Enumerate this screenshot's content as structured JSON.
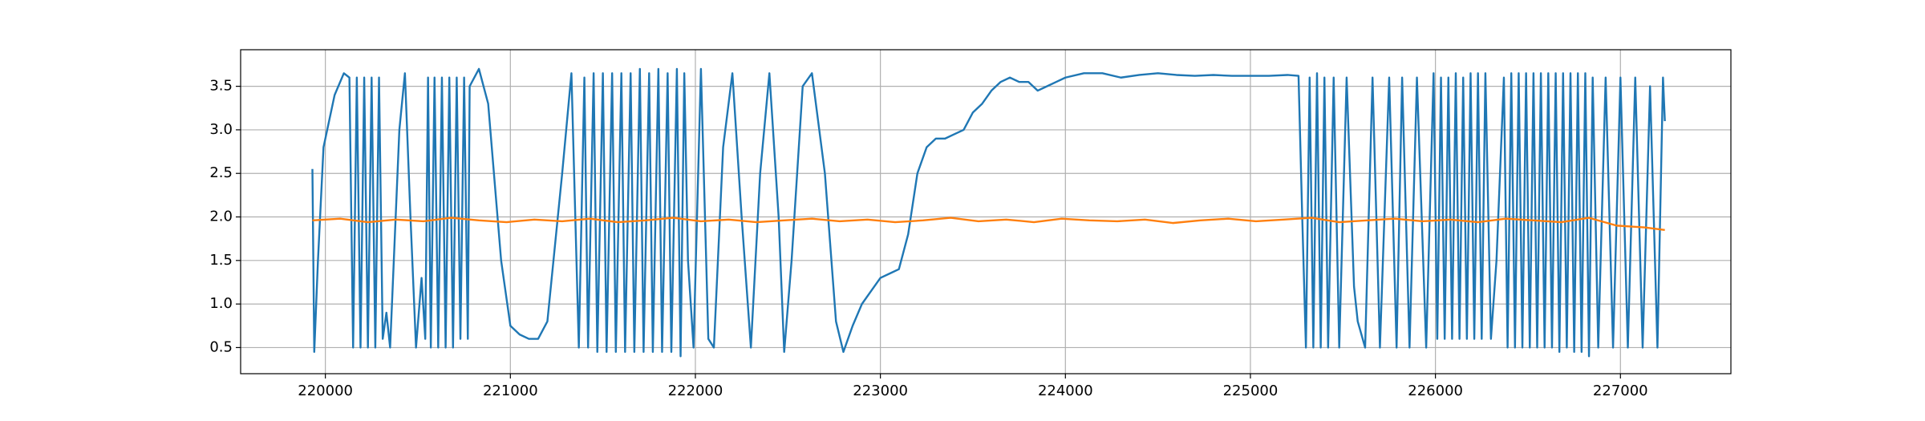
{
  "chart_data": {
    "type": "line",
    "xlim": [
      219542,
      227597
    ],
    "ylim": [
      0.2,
      3.92
    ],
    "xticks": [
      220000,
      221000,
      222000,
      223000,
      224000,
      225000,
      226000,
      227000
    ],
    "yticks": [
      0.5,
      {
        "value": 1,
        "label": "1.0"
      },
      1.5,
      {
        "value": 2,
        "label": "2.0"
      },
      2.5,
      {
        "value": 3,
        "label": "3.0"
      },
      3.5
    ],
    "grid": true,
    "series": [
      {
        "color": "#1f77b4",
        "x": [
          219930,
          219940,
          219960,
          219990,
          220050,
          220100,
          220130,
          220150,
          220170,
          220190,
          220210,
          220230,
          220250,
          220270,
          220290,
          220310,
          220330,
          220350,
          220400,
          220430,
          220460,
          220490,
          220520,
          220540,
          220555,
          220570,
          220590,
          220610,
          220630,
          220650,
          220670,
          220690,
          220710,
          220730,
          220750,
          220770,
          220780,
          220830,
          220880,
          220950,
          221000,
          221050,
          221100,
          221150,
          221200,
          221280,
          221330,
          221370,
          221400,
          221420,
          221450,
          221470,
          221500,
          221520,
          221550,
          221570,
          221600,
          221620,
          221650,
          221670,
          221700,
          221720,
          221750,
          221770,
          221800,
          221820,
          221850,
          221870,
          221900,
          221920,
          221940,
          221960,
          221990,
          222030,
          222070,
          222100,
          222150,
          222200,
          222250,
          222300,
          222350,
          222400,
          222450,
          222480,
          222520,
          222580,
          222630,
          222700,
          222760,
          222800,
          222850,
          222900,
          222950,
          223000,
          223050,
          223100,
          223150,
          223200,
          223250,
          223300,
          223350,
          223400,
          223450,
          223500,
          223550,
          223600,
          223650,
          223700,
          223750,
          223800,
          223850,
          223900,
          223950,
          224000,
          224100,
          224200,
          224300,
          224400,
          224500,
          224600,
          224700,
          224800,
          224900,
          225000,
          225100,
          225200,
          225260,
          225280,
          225300,
          225320,
          225340,
          225360,
          225380,
          225400,
          225420,
          225450,
          225480,
          225520,
          225560,
          225580,
          225620,
          225660,
          225700,
          225750,
          225790,
          225820,
          225860,
          225900,
          225950,
          225990,
          226010,
          226030,
          226050,
          226070,
          226090,
          226110,
          226130,
          226150,
          226170,
          226190,
          226210,
          226230,
          226250,
          226270,
          226300,
          226330,
          226370,
          226390,
          226410,
          226430,
          226450,
          226470,
          226490,
          226510,
          226530,
          226550,
          226570,
          226590,
          226610,
          226630,
          226650,
          226670,
          226690,
          226710,
          226730,
          226750,
          226770,
          226790,
          226810,
          226830,
          226850,
          226880,
          226920,
          226960,
          227000,
          227040,
          227080,
          227120,
          227160,
          227200,
          227230,
          227240
        ],
        "values": [
          2.55,
          0.45,
          1.5,
          2.8,
          3.4,
          3.65,
          3.6,
          0.5,
          3.6,
          0.5,
          3.6,
          0.5,
          3.6,
          0.5,
          3.6,
          0.6,
          0.9,
          0.5,
          3.0,
          3.65,
          2.0,
          0.5,
          1.3,
          0.6,
          3.6,
          0.5,
          3.6,
          0.5,
          3.6,
          0.5,
          3.6,
          0.5,
          3.6,
          0.6,
          3.6,
          0.6,
          3.5,
          3.7,
          3.3,
          1.5,
          0.75,
          0.65,
          0.6,
          0.6,
          0.8,
          2.5,
          3.65,
          0.5,
          3.6,
          0.5,
          3.65,
          0.45,
          3.65,
          0.45,
          3.65,
          0.45,
          3.65,
          0.45,
          3.65,
          0.45,
          3.7,
          0.45,
          3.65,
          0.45,
          3.7,
          0.45,
          3.65,
          0.45,
          3.7,
          0.4,
          3.65,
          1.5,
          0.5,
          3.7,
          0.6,
          0.5,
          2.8,
          3.65,
          2.0,
          0.5,
          2.5,
          3.65,
          2.0,
          0.45,
          1.5,
          3.5,
          3.65,
          2.5,
          0.8,
          0.45,
          0.75,
          1.0,
          1.15,
          1.3,
          1.35,
          1.4,
          1.8,
          2.5,
          2.8,
          2.9,
          2.9,
          2.95,
          3.0,
          3.2,
          3.3,
          3.45,
          3.55,
          3.6,
          3.55,
          3.55,
          3.45,
          3.5,
          3.55,
          3.6,
          3.65,
          3.65,
          3.6,
          3.63,
          3.65,
          3.63,
          3.62,
          3.63,
          3.62,
          3.62,
          3.62,
          3.63,
          3.62,
          2.0,
          0.5,
          3.6,
          0.5,
          3.65,
          0.5,
          3.6,
          0.5,
          3.6,
          0.5,
          3.6,
          1.2,
          0.8,
          0.5,
          3.6,
          0.5,
          3.6,
          0.5,
          3.6,
          0.5,
          3.6,
          0.5,
          3.65,
          0.6,
          3.6,
          0.6,
          3.6,
          0.6,
          3.65,
          0.6,
          3.6,
          0.6,
          3.65,
          0.6,
          3.65,
          0.6,
          3.65,
          0.6,
          1.5,
          3.6,
          0.5,
          3.65,
          0.5,
          3.65,
          0.5,
          3.65,
          0.5,
          3.65,
          0.5,
          3.65,
          0.5,
          3.65,
          0.5,
          3.65,
          0.45,
          3.65,
          0.5,
          3.65,
          0.45,
          3.65,
          0.45,
          3.65,
          0.4,
          3.6,
          0.5,
          3.6,
          0.5,
          3.6,
          0.5,
          3.6,
          0.5,
          3.5,
          0.5,
          3.6,
          3.1
        ]
      },
      {
        "color": "#ff7f0e",
        "x": [
          219930,
          220080,
          220230,
          220380,
          220530,
          220680,
          220830,
          220980,
          221130,
          221280,
          221430,
          221580,
          221730,
          221880,
          222030,
          222180,
          222330,
          222480,
          222630,
          222780,
          222930,
          223080,
          223230,
          223380,
          223530,
          223680,
          223830,
          223980,
          224130,
          224280,
          224430,
          224580,
          224730,
          224880,
          225030,
          225180,
          225330,
          225480,
          225630,
          225780,
          225930,
          226080,
          226230,
          226380,
          226530,
          226680,
          226830,
          226980,
          227130,
          227240
        ],
        "values": [
          1.96,
          1.98,
          1.94,
          1.97,
          1.95,
          1.99,
          1.96,
          1.94,
          1.97,
          1.95,
          1.98,
          1.94,
          1.96,
          1.99,
          1.95,
          1.97,
          1.94,
          1.96,
          1.98,
          1.95,
          1.97,
          1.94,
          1.96,
          1.99,
          1.95,
          1.97,
          1.94,
          1.98,
          1.96,
          1.95,
          1.97,
          1.93,
          1.96,
          1.98,
          1.95,
          1.97,
          1.99,
          1.94,
          1.96,
          1.98,
          1.95,
          1.97,
          1.94,
          1.98,
          1.96,
          1.94,
          1.99,
          1.9,
          1.88,
          1.85
        ]
      }
    ]
  }
}
